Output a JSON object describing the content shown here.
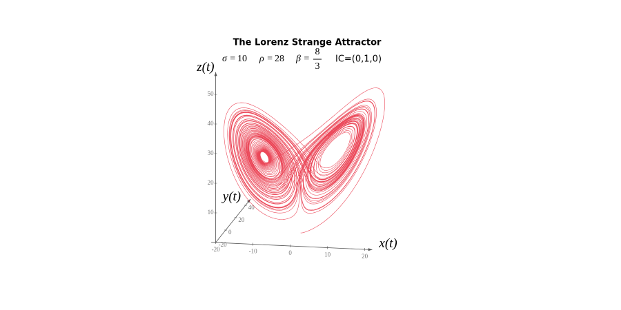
{
  "chart_data": {
    "type": "lorenz",
    "title": "The Lorenz Strange Attractor",
    "parameters": [
      {
        "symbol": "σ =",
        "value": 10
      },
      {
        "symbol": "ρ =",
        "value": 28
      },
      {
        "symbol": "β =",
        "numerator": 8,
        "denominator": 3
      }
    ],
    "initial_condition": "IC=(0,1,0)",
    "color": "#e8283c",
    "x_label": "x(t)",
    "y_label": "y(t)",
    "z_label": "z(t)",
    "xticks": [
      -20,
      -10,
      0,
      10,
      20
    ],
    "yticks": [
      -20,
      0,
      20,
      40
    ],
    "zticks": [
      10,
      20,
      30,
      40,
      50
    ]
  }
}
